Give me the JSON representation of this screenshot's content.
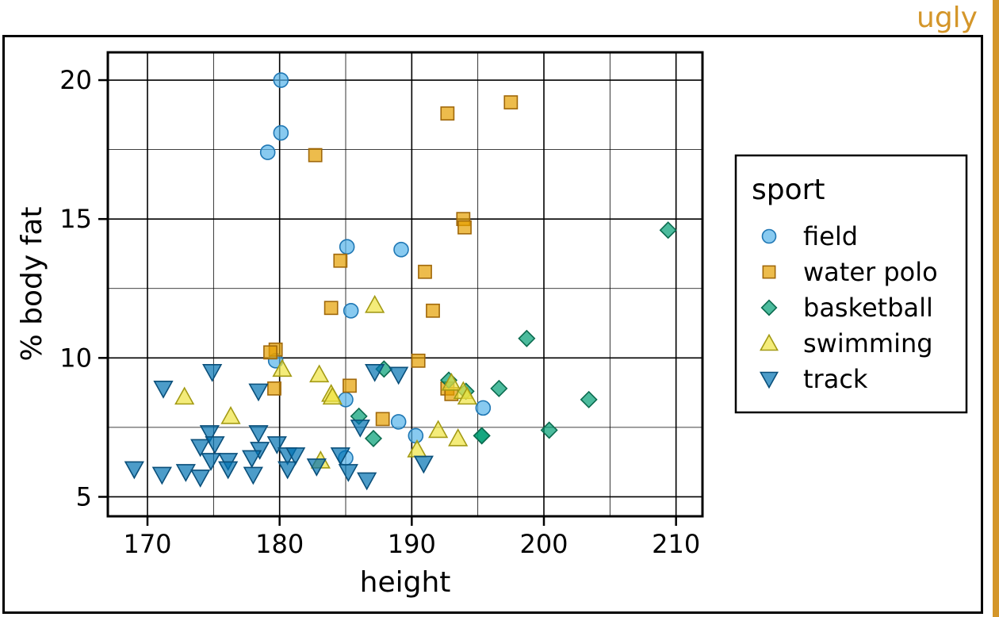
{
  "tag": {
    "text": "ugly",
    "color": "#d4962a"
  },
  "chart_data": {
    "type": "scatter",
    "title": "",
    "xlabel": "height",
    "ylabel": "% body fat",
    "xlim": [
      167,
      212
    ],
    "ylim": [
      4.3,
      21.0
    ],
    "xticks": [
      170,
      180,
      190,
      200,
      210
    ],
    "yticks": [
      5,
      10,
      15,
      20
    ],
    "grid": true,
    "legend": {
      "title": "sport",
      "position": "right"
    },
    "series": [
      {
        "name": "field",
        "marker": "circle",
        "color": "#56b4e9",
        "stroke": "#1f77b4",
        "points": [
          [
            180.1,
            20.0
          ],
          [
            180.1,
            18.1
          ],
          [
            179.1,
            17.4
          ],
          [
            185.1,
            14.0
          ],
          [
            189.2,
            13.9
          ],
          [
            185.4,
            11.7
          ],
          [
            179.7,
            9.9
          ],
          [
            185.0,
            8.5
          ],
          [
            189.0,
            7.7
          ],
          [
            195.4,
            8.2
          ],
          [
            190.3,
            7.2
          ],
          [
            185.0,
            6.4
          ]
        ]
      },
      {
        "name": "water polo",
        "marker": "square",
        "color": "#e69f00",
        "stroke": "#a0680a",
        "points": [
          [
            197.5,
            19.2
          ],
          [
            192.7,
            18.8
          ],
          [
            182.7,
            17.3
          ],
          [
            193.9,
            15.0
          ],
          [
            194.0,
            14.7
          ],
          [
            184.6,
            13.5
          ],
          [
            191.0,
            13.1
          ],
          [
            183.9,
            11.8
          ],
          [
            191.6,
            11.7
          ],
          [
            179.7,
            10.3
          ],
          [
            179.3,
            10.2
          ],
          [
            190.5,
            9.9
          ],
          [
            185.3,
            9.0
          ],
          [
            179.6,
            8.9
          ],
          [
            192.7,
            8.9
          ],
          [
            193.0,
            8.7
          ],
          [
            187.8,
            7.8
          ]
        ]
      },
      {
        "name": "basketball",
        "marker": "diamond",
        "color": "#009e73",
        "stroke": "#0b6b4f",
        "points": [
          [
            209.4,
            14.6
          ],
          [
            198.7,
            10.7
          ],
          [
            187.9,
            9.6
          ],
          [
            192.8,
            9.2
          ],
          [
            194.1,
            8.8
          ],
          [
            196.6,
            8.9
          ],
          [
            203.4,
            8.5
          ],
          [
            186.0,
            7.9
          ],
          [
            187.1,
            7.1
          ],
          [
            195.3,
            7.2
          ],
          [
            195.3,
            7.2
          ],
          [
            200.4,
            7.4
          ]
        ]
      },
      {
        "name": "swimming",
        "marker": "triangle-up",
        "color": "#f0e442",
        "stroke": "#a39a14",
        "points": [
          [
            187.2,
            11.9
          ],
          [
            180.2,
            9.6
          ],
          [
            183.0,
            9.4
          ],
          [
            193.0,
            9.1
          ],
          [
            172.8,
            8.6
          ],
          [
            183.9,
            8.7
          ],
          [
            193.9,
            8.8
          ],
          [
            194.2,
            8.6
          ],
          [
            176.3,
            7.9
          ],
          [
            192.0,
            7.4
          ],
          [
            193.5,
            7.1
          ],
          [
            190.4,
            6.7
          ],
          [
            183.1,
            6.3
          ],
          [
            184.0,
            8.6
          ]
        ]
      },
      {
        "name": "track",
        "marker": "triangle-down",
        "color": "#0072b2",
        "stroke": "#0a4f7a",
        "points": [
          [
            174.9,
            9.5
          ],
          [
            171.2,
            8.9
          ],
          [
            178.4,
            8.8
          ],
          [
            187.2,
            9.5
          ],
          [
            189.0,
            9.4
          ],
          [
            174.7,
            7.3
          ],
          [
            178.4,
            7.3
          ],
          [
            174.0,
            6.8
          ],
          [
            175.1,
            6.9
          ],
          [
            178.5,
            6.7
          ],
          [
            179.8,
            6.9
          ],
          [
            176.1,
            6.3
          ],
          [
            174.8,
            6.3
          ],
          [
            177.9,
            6.4
          ],
          [
            180.6,
            6.5
          ],
          [
            181.2,
            6.5
          ],
          [
            184.6,
            6.5
          ],
          [
            186.1,
            7.5
          ],
          [
            169.0,
            6.0
          ],
          [
            171.1,
            5.8
          ],
          [
            172.9,
            5.9
          ],
          [
            174.0,
            5.7
          ],
          [
            176.1,
            6.0
          ],
          [
            178.0,
            5.8
          ],
          [
            180.6,
            6.0
          ],
          [
            182.8,
            6.1
          ],
          [
            185.2,
            5.9
          ],
          [
            186.6,
            5.6
          ],
          [
            190.9,
            6.2
          ]
        ]
      }
    ]
  }
}
